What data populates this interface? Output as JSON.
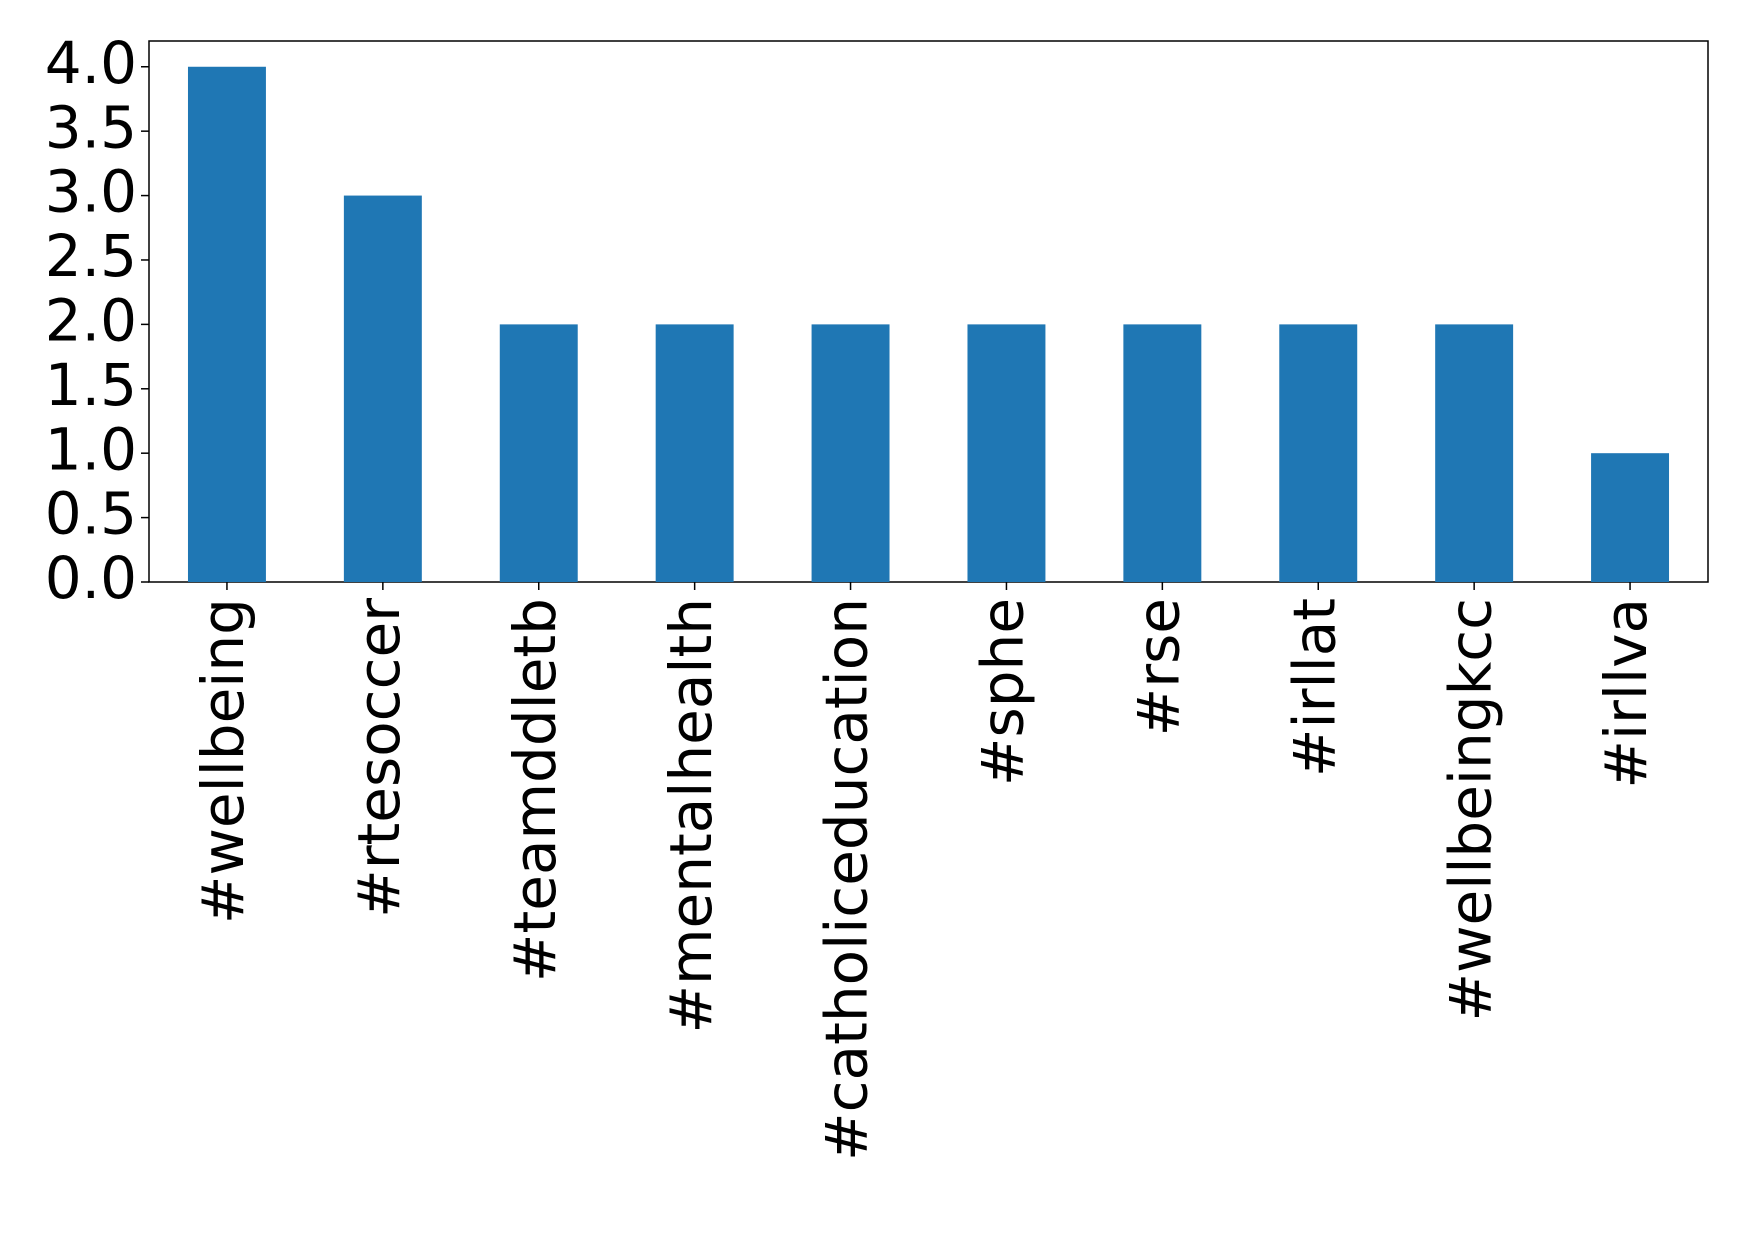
{
  "chart_data": {
    "type": "bar",
    "categories": [
      "#wellbeing",
      "#rtesoccer",
      "#teamddletb",
      "#mentalhealth",
      "#catholiceducation",
      "#sphe",
      "#rse",
      "#irllat",
      "#wellbeingkcc",
      "#irllva"
    ],
    "values": [
      4,
      3,
      2,
      2,
      2,
      2,
      2,
      2,
      2,
      1
    ],
    "color": "#1f77b4",
    "ylim": [
      0,
      4.2
    ],
    "yticks": [
      {
        "value": 0,
        "label": "0.0"
      },
      {
        "value": 0.5,
        "label": "0.5"
      },
      {
        "value": 1,
        "label": "1.0"
      },
      {
        "value": 1.5,
        "label": "1.5"
      },
      {
        "value": 2,
        "label": "2.0"
      },
      {
        "value": 2.5,
        "label": "2.5"
      },
      {
        "value": 3,
        "label": "3.0"
      },
      {
        "value": 3.5,
        "label": "3.5"
      },
      {
        "value": 4,
        "label": "4.0"
      }
    ],
    "grid": false
  }
}
